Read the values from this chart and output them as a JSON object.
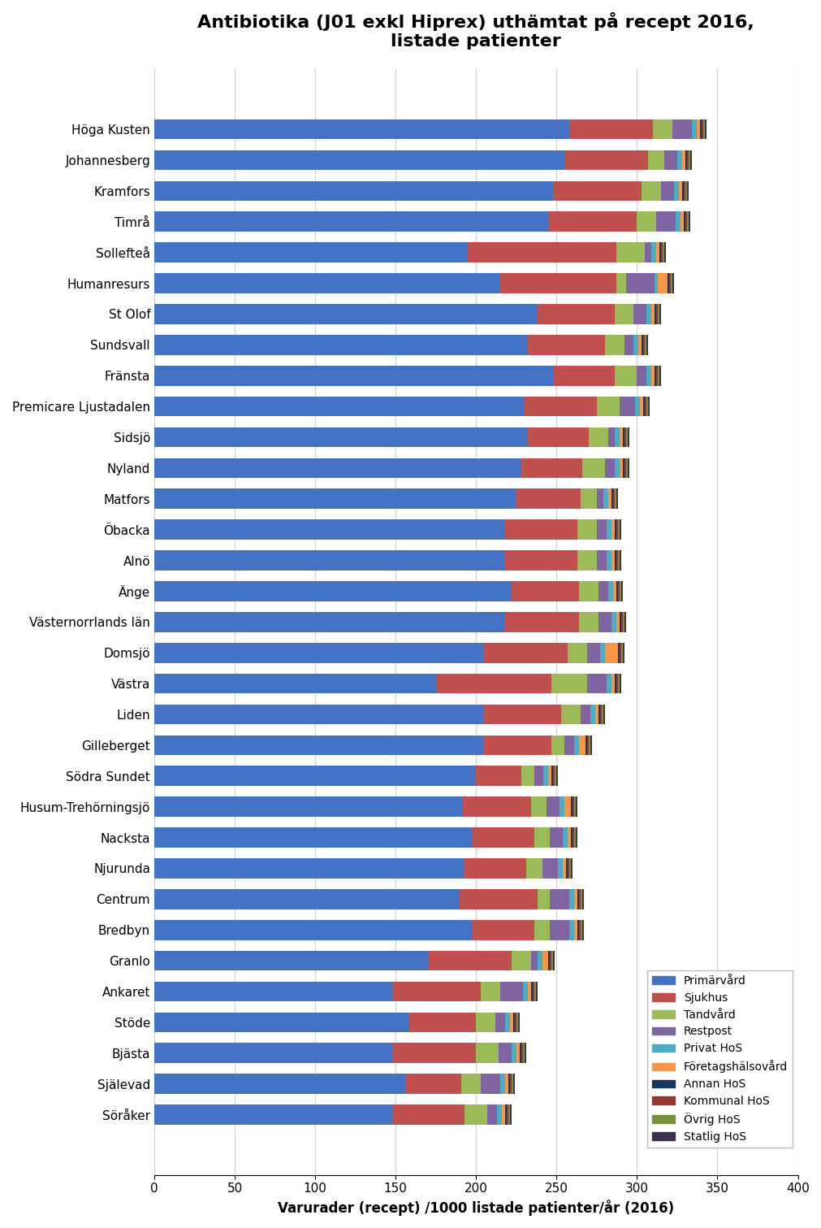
{
  "title": "Antibiotika (J01 exkl Hiprex) uthämtat på recept 2016,\nlistade patienter",
  "xlabel": "Varurader (recept) /1000 listade patienter/år (2016)",
  "categories": [
    "Höga Kusten",
    "Johannesberg",
    "Kramfors",
    "Timrå",
    "Sollefteå",
    "Humanresurs",
    "St Olof",
    "Sundsvall",
    "Fränsta",
    "Premicare Ljustadalen",
    "Sidsjö",
    "Nyland",
    "Matfors",
    "Öbacka",
    "Alnö",
    "Änge",
    "Västernorrlands län",
    "Domsjö",
    "Västra",
    "Liden",
    "Gilleberget",
    "Södra Sundet",
    "Husum-Trehörningsjö",
    "Nacksta",
    "Njurunda",
    "Centrum",
    "Bredbyn",
    "Granlo",
    "Ankaret",
    "Stöde",
    "Bjästa",
    "Själevad",
    "Söråker"
  ],
  "segments": {
    "Primärvård": [
      258,
      255,
      248,
      245,
      195,
      215,
      238,
      232,
      248,
      230,
      232,
      228,
      225,
      218,
      218,
      222,
      218,
      205,
      175,
      205,
      205,
      200,
      192,
      198,
      193,
      190,
      198,
      170,
      148,
      158,
      148,
      156,
      148
    ],
    "Sjukhus": [
      52,
      52,
      55,
      55,
      92,
      72,
      48,
      48,
      38,
      45,
      38,
      38,
      40,
      45,
      45,
      42,
      46,
      52,
      72,
      48,
      42,
      28,
      42,
      38,
      38,
      48,
      38,
      52,
      55,
      42,
      52,
      35,
      45
    ],
    "Tandvård": [
      12,
      10,
      12,
      12,
      18,
      6,
      12,
      12,
      14,
      14,
      12,
      14,
      10,
      12,
      12,
      12,
      12,
      12,
      22,
      12,
      8,
      8,
      10,
      10,
      10,
      8,
      10,
      12,
      12,
      12,
      14,
      12,
      14
    ],
    "Restpost": [
      12,
      8,
      8,
      12,
      4,
      18,
      8,
      6,
      6,
      10,
      4,
      6,
      4,
      6,
      6,
      6,
      8,
      8,
      12,
      6,
      6,
      6,
      8,
      8,
      10,
      12,
      12,
      4,
      14,
      6,
      8,
      12,
      6
    ],
    "Privat HoS": [
      3,
      3,
      3,
      3,
      3,
      2,
      3,
      3,
      3,
      3,
      3,
      3,
      3,
      3,
      3,
      3,
      3,
      3,
      3,
      3,
      3,
      3,
      3,
      3,
      3,
      3,
      3,
      3,
      3,
      3,
      3,
      3,
      3
    ],
    "Företagshälsovård": [
      2,
      2,
      2,
      2,
      2,
      6,
      2,
      2,
      2,
      2,
      2,
      2,
      2,
      2,
      2,
      2,
      2,
      8,
      2,
      2,
      4,
      2,
      4,
      2,
      2,
      2,
      2,
      4,
      2,
      2,
      2,
      2,
      2
    ],
    "Annan HoS": [
      1,
      1,
      1,
      1,
      1,
      1,
      1,
      1,
      1,
      1,
      1,
      1,
      1,
      1,
      1,
      1,
      1,
      1,
      1,
      1,
      1,
      1,
      1,
      1,
      1,
      1,
      1,
      1,
      1,
      1,
      1,
      1,
      1
    ],
    "Kommunal HoS": [
      1,
      1,
      1,
      1,
      1,
      1,
      1,
      1,
      1,
      1,
      1,
      1,
      1,
      1,
      1,
      1,
      1,
      1,
      1,
      1,
      1,
      1,
      1,
      1,
      1,
      1,
      1,
      1,
      1,
      1,
      1,
      1,
      1
    ],
    "Övrig HoS": [
      1,
      1,
      1,
      1,
      1,
      1,
      1,
      1,
      1,
      1,
      1,
      1,
      1,
      1,
      1,
      1,
      1,
      1,
      1,
      1,
      1,
      1,
      1,
      1,
      1,
      1,
      1,
      1,
      1,
      1,
      1,
      1,
      1
    ],
    "Statlig HoS": [
      1,
      1,
      1,
      1,
      1,
      1,
      1,
      1,
      1,
      1,
      1,
      1,
      1,
      1,
      1,
      1,
      1,
      1,
      1,
      1,
      1,
      1,
      1,
      1,
      1,
      1,
      1,
      1,
      1,
      1,
      1,
      1,
      1
    ]
  },
  "colors": {
    "Primärvård": "#4472C4",
    "Sjukhus": "#C0504D",
    "Tandvård": "#9BBB59",
    "Restpost": "#8064A2",
    "Privat HoS": "#4BACC6",
    "Företagshälsovård": "#F79646",
    "Annan HoS": "#17375E",
    "Kommunal HoS": "#953735",
    "Övrig HoS": "#76933C",
    "Statlig HoS": "#403152"
  },
  "xlim": [
    0,
    400
  ],
  "xticks": [
    0,
    50,
    100,
    150,
    200,
    250,
    300,
    350,
    400
  ],
  "background_color": "#FFFFFF",
  "title_fontsize": 16,
  "label_fontsize": 12,
  "tick_fontsize": 11
}
